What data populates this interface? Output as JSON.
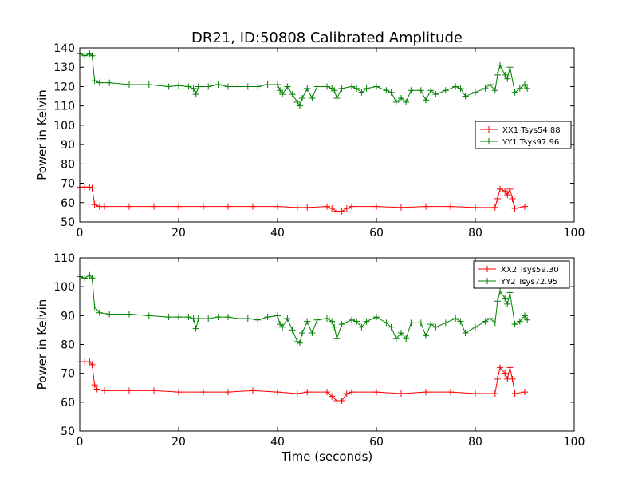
{
  "figure": {
    "title": "DR21, ID:50808 Calibrated Amplitude",
    "xlabel": "Time (seconds)"
  },
  "chart_data": [
    {
      "type": "line",
      "title": "DR21, ID:50808 Calibrated Amplitude",
      "xlabel": "",
      "ylabel": "Power in Kelvin",
      "xlim": [
        0,
        100
      ],
      "ylim": [
        50,
        140
      ],
      "xticks": [
        0,
        20,
        40,
        60,
        80,
        100
      ],
      "yticks": [
        50,
        60,
        70,
        80,
        90,
        100,
        110,
        120,
        130,
        140
      ],
      "grid": false,
      "legend": "center-right",
      "marker": "plus",
      "series": [
        {
          "name": "XX1 Tsys54.88",
          "color": "#ff0000",
          "points": [
            [
              0,
              68
            ],
            [
              1,
              68
            ],
            [
              2,
              68
            ],
            [
              2.5,
              67.5
            ],
            [
              3,
              59
            ],
            [
              4,
              58
            ],
            [
              5,
              58
            ],
            [
              10,
              58
            ],
            [
              15,
              58
            ],
            [
              20,
              58
            ],
            [
              25,
              58
            ],
            [
              30,
              58
            ],
            [
              35,
              58
            ],
            [
              40,
              58
            ],
            [
              44,
              57.5
            ],
            [
              46,
              57.5
            ],
            [
              50,
              58
            ],
            [
              51,
              57
            ],
            [
              52,
              55.5
            ],
            [
              53,
              55.5
            ],
            [
              54,
              57
            ],
            [
              55,
              58
            ],
            [
              60,
              58
            ],
            [
              65,
              57.5
            ],
            [
              70,
              58
            ],
            [
              75,
              58
            ],
            [
              80,
              57.5
            ],
            [
              84,
              57.5
            ],
            [
              84.5,
              62
            ],
            [
              85,
              67
            ],
            [
              86,
              66
            ],
            [
              86.5,
              64
            ],
            [
              87,
              67
            ],
            [
              87.5,
              62
            ],
            [
              88,
              57
            ],
            [
              90,
              58
            ]
          ]
        },
        {
          "name": "YY1 Tsys97.96",
          "color": "#008000",
          "points": [
            [
              0,
              137
            ],
            [
              1,
              136
            ],
            [
              2,
              137
            ],
            [
              2.5,
              136
            ],
            [
              3,
              123
            ],
            [
              4,
              122
            ],
            [
              6,
              122
            ],
            [
              10,
              121
            ],
            [
              14,
              121
            ],
            [
              18,
              120
            ],
            [
              20,
              120.5
            ],
            [
              22,
              120
            ],
            [
              23,
              119
            ],
            [
              23.5,
              116
            ],
            [
              24,
              120
            ],
            [
              26,
              120
            ],
            [
              28,
              121
            ],
            [
              30,
              120
            ],
            [
              32,
              120
            ],
            [
              34,
              120
            ],
            [
              36,
              120
            ],
            [
              38,
              121
            ],
            [
              40,
              121
            ],
            [
              40.5,
              118
            ],
            [
              41,
              116
            ],
            [
              42,
              120
            ],
            [
              43,
              116
            ],
            [
              44,
              112
            ],
            [
              44.5,
              110
            ],
            [
              45,
              114
            ],
            [
              46,
              119
            ],
            [
              47,
              114
            ],
            [
              48,
              120
            ],
            [
              50,
              120
            ],
            [
              51,
              119
            ],
            [
              51.5,
              118
            ],
            [
              52,
              114
            ],
            [
              53,
              119
            ],
            [
              55,
              120
            ],
            [
              56,
              119
            ],
            [
              57,
              117
            ],
            [
              58,
              119
            ],
            [
              60,
              120
            ],
            [
              62,
              118
            ],
            [
              63,
              117
            ],
            [
              64,
              112
            ],
            [
              65,
              114
            ],
            [
              66,
              112
            ],
            [
              67,
              118
            ],
            [
              69,
              118
            ],
            [
              70,
              113
            ],
            [
              71,
              118
            ],
            [
              72,
              116
            ],
            [
              74,
              118
            ],
            [
              76,
              120
            ],
            [
              77,
              119
            ],
            [
              78,
              115
            ],
            [
              80,
              117
            ],
            [
              82,
              119
            ],
            [
              83,
              121
            ],
            [
              84,
              118
            ],
            [
              84.5,
              126
            ],
            [
              85,
              131
            ],
            [
              86,
              126
            ],
            [
              86.5,
              124
            ],
            [
              87,
              130
            ],
            [
              88,
              117
            ],
            [
              89,
              119
            ],
            [
              90,
              121
            ],
            [
              90.5,
              119
            ]
          ]
        }
      ]
    },
    {
      "type": "line",
      "title": "",
      "xlabel": "Time (seconds)",
      "ylabel": "Power in Kelvin",
      "xlim": [
        0,
        100
      ],
      "ylim": [
        50,
        110
      ],
      "xticks": [
        0,
        20,
        40,
        60,
        80,
        100
      ],
      "yticks": [
        50,
        60,
        70,
        80,
        90,
        100,
        110
      ],
      "grid": false,
      "legend": "top-right",
      "marker": "plus",
      "series": [
        {
          "name": "XX2 Tsys59.30",
          "color": "#ff0000",
          "points": [
            [
              0,
              74
            ],
            [
              1,
              74
            ],
            [
              2,
              74
            ],
            [
              2.5,
              73
            ],
            [
              3,
              66
            ],
            [
              3.5,
              64.5
            ],
            [
              5,
              64
            ],
            [
              10,
              64
            ],
            [
              15,
              64
            ],
            [
              20,
              63.5
            ],
            [
              25,
              63.5
            ],
            [
              30,
              63.5
            ],
            [
              35,
              64
            ],
            [
              40,
              63.5
            ],
            [
              44,
              63
            ],
            [
              46,
              63.5
            ],
            [
              50,
              63.5
            ],
            [
              51,
              62
            ],
            [
              52,
              60.5
            ],
            [
              53,
              60.5
            ],
            [
              54,
              63
            ],
            [
              55,
              63.5
            ],
            [
              60,
              63.5
            ],
            [
              65,
              63
            ],
            [
              70,
              63.5
            ],
            [
              75,
              63.5
            ],
            [
              80,
              63
            ],
            [
              84,
              63
            ],
            [
              84.5,
              68
            ],
            [
              85,
              72
            ],
            [
              86,
              70
            ],
            [
              86.5,
              68
            ],
            [
              87,
              72
            ],
            [
              87.5,
              68
            ],
            [
              88,
              63
            ],
            [
              90,
              63.5
            ]
          ]
        },
        {
          "name": "YY2 Tsys72.95",
          "color": "#008000",
          "points": [
            [
              0,
              103.5
            ],
            [
              1,
              103
            ],
            [
              2,
              104
            ],
            [
              2.5,
              103
            ],
            [
              3,
              93
            ],
            [
              4,
              91
            ],
            [
              6,
              90.5
            ],
            [
              10,
              90.5
            ],
            [
              14,
              90
            ],
            [
              18,
              89.5
            ],
            [
              20,
              89.5
            ],
            [
              22,
              89.5
            ],
            [
              23,
              89
            ],
            [
              23.5,
              85.5
            ],
            [
              24,
              89
            ],
            [
              26,
              89
            ],
            [
              28,
              89.5
            ],
            [
              30,
              89.5
            ],
            [
              32,
              89
            ],
            [
              34,
              89
            ],
            [
              36,
              88.5
            ],
            [
              38,
              89.5
            ],
            [
              40,
              90
            ],
            [
              40.5,
              87
            ],
            [
              41,
              86
            ],
            [
              42,
              89
            ],
            [
              43,
              85
            ],
            [
              44,
              81
            ],
            [
              44.5,
              80.5
            ],
            [
              45,
              84
            ],
            [
              46,
              88
            ],
            [
              47,
              84
            ],
            [
              48,
              88.5
            ],
            [
              50,
              89
            ],
            [
              51,
              88
            ],
            [
              51.5,
              86
            ],
            [
              52,
              82
            ],
            [
              53,
              87
            ],
            [
              55,
              88.5
            ],
            [
              56,
              88
            ],
            [
              57,
              86
            ],
            [
              58,
              88
            ],
            [
              60,
              89.5
            ],
            [
              62,
              87.5
            ],
            [
              63,
              86
            ],
            [
              64,
              82
            ],
            [
              65,
              84
            ],
            [
              66,
              82
            ],
            [
              67,
              87.5
            ],
            [
              69,
              87.5
            ],
            [
              70,
              83
            ],
            [
              71,
              87
            ],
            [
              72,
              86
            ],
            [
              74,
              87.5
            ],
            [
              76,
              89
            ],
            [
              77,
              88
            ],
            [
              78,
              84
            ],
            [
              80,
              86
            ],
            [
              82,
              88
            ],
            [
              83,
              89
            ],
            [
              84,
              87.5
            ],
            [
              84.5,
              95
            ],
            [
              85,
              98.5
            ],
            [
              86,
              96
            ],
            [
              86.5,
              94
            ],
            [
              87,
              98
            ],
            [
              88,
              87
            ],
            [
              89,
              88
            ],
            [
              90,
              90
            ],
            [
              90.5,
              88.5
            ]
          ]
        }
      ]
    }
  ]
}
